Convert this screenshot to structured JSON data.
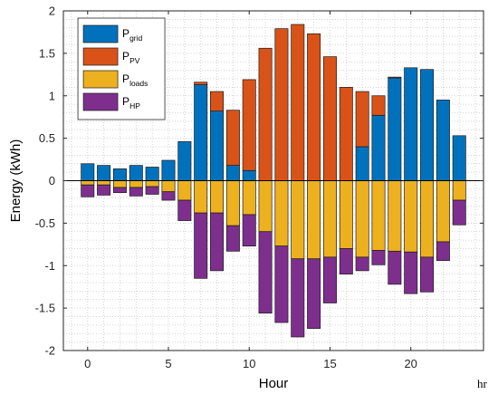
{
  "chart_data": {
    "type": "bar",
    "stacked": true,
    "xlabel": "Hour",
    "ylabel": "Energy (kWh)",
    "x_unit_label": "hr",
    "xlim": [
      -1.5,
      24.5
    ],
    "ylim": [
      -2,
      2
    ],
    "xticks": [
      0,
      5,
      10,
      15,
      20
    ],
    "yticks": [
      -2,
      -1.5,
      -1,
      -0.5,
      0,
      0.5,
      1,
      1.5,
      2
    ],
    "ytick_labels": [
      "-2",
      "-1.5",
      "-1",
      "-0.5",
      "0",
      "0.5",
      "1",
      "1.5",
      "2"
    ],
    "grid": "minor-dotted",
    "legend_position": "top-left",
    "categories": [
      0,
      1,
      2,
      3,
      4,
      5,
      6,
      7,
      8,
      9,
      10,
      11,
      12,
      13,
      14,
      15,
      16,
      17,
      18,
      19,
      20,
      21,
      22,
      23
    ],
    "series": [
      {
        "name": "grid",
        "color": "#0072BD",
        "values": [
          0.2,
          0.18,
          0.14,
          0.18,
          0.16,
          0.24,
          0.46,
          1.13,
          0.82,
          0.18,
          0.12,
          0.0,
          0.0,
          0.0,
          0.0,
          0.0,
          0.0,
          0.4,
          0.77,
          1.21,
          1.33,
          1.31,
          0.95,
          0.53
        ]
      },
      {
        "name": "PV",
        "color": "#D95319",
        "values": [
          0.0,
          0.0,
          0.0,
          0.0,
          0.0,
          0.0,
          0.0,
          0.03,
          0.23,
          0.65,
          1.07,
          1.56,
          1.79,
          1.84,
          1.73,
          1.46,
          1.1,
          0.65,
          0.23,
          0.01,
          0.0,
          0.0,
          0.0,
          0.0
        ]
      },
      {
        "name": "loads",
        "color": "#EDB120",
        "values": [
          -0.05,
          -0.05,
          -0.08,
          -0.08,
          -0.07,
          -0.13,
          -0.23,
          -0.38,
          -0.38,
          -0.53,
          -0.4,
          -0.6,
          -0.77,
          -0.92,
          -0.92,
          -0.9,
          -0.8,
          -0.9,
          -0.82,
          -0.83,
          -0.84,
          -0.9,
          -0.72,
          -0.23
        ]
      },
      {
        "name": "HP",
        "color": "#7E2F8E",
        "values": [
          -0.14,
          -0.12,
          -0.06,
          -0.1,
          -0.09,
          -0.1,
          -0.24,
          -0.77,
          -0.68,
          -0.3,
          -0.37,
          -0.96,
          -0.9,
          -0.92,
          -0.82,
          -0.54,
          -0.3,
          -0.16,
          -0.17,
          -0.39,
          -0.49,
          -0.41,
          -0.22,
          -0.29
        ]
      }
    ],
    "legend": [
      {
        "main": "P",
        "sub": "grid",
        "color": "#0072BD"
      },
      {
        "main": "P",
        "sub": "PV",
        "color": "#D95319"
      },
      {
        "main": "P",
        "sub": "loads",
        "color": "#EDB120"
      },
      {
        "main": "P",
        "sub": "HP",
        "color": "#7E2F8E"
      }
    ]
  }
}
